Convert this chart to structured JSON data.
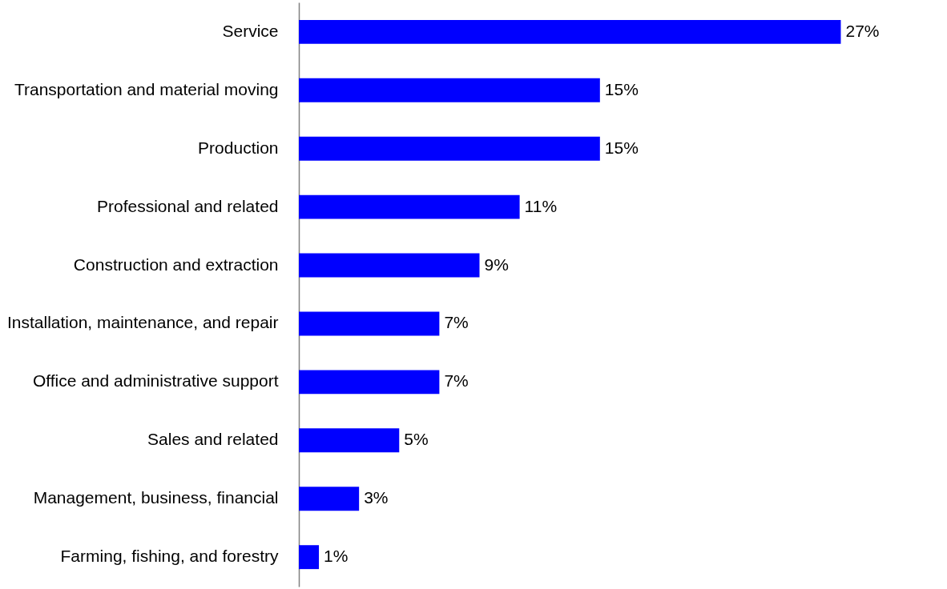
{
  "chart_data": {
    "type": "bar",
    "orientation": "horizontal",
    "categories": [
      "Service",
      "Transportation and material moving",
      "Production",
      "Professional and related",
      "Construction and extraction",
      "Installation, maintenance, and repair",
      "Office and administrative support",
      "Sales and related",
      "Management, business, financial",
      "Farming, fishing, and forestry"
    ],
    "values": [
      27,
      15,
      15,
      11,
      9,
      7,
      7,
      5,
      3,
      1
    ],
    "color": "#0000ff",
    "data_labels": true,
    "value_labels": [
      "27%",
      "15%",
      "15%",
      "11%",
      "9%",
      "7%",
      "7%",
      "5%",
      "3%",
      "1%"
    ]
  }
}
